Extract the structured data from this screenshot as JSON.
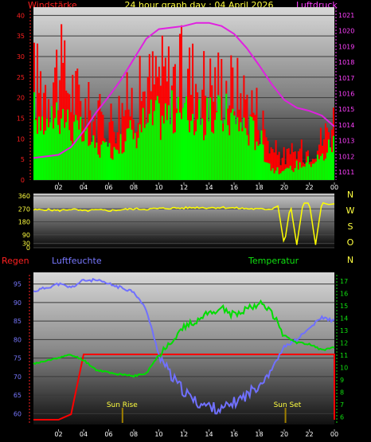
{
  "header": {
    "title": "24 hour graph day : 04 April 2026",
    "left_label": "Windstärke",
    "right_label": "Luftdruck"
  },
  "colors": {
    "wind_max": "#ff0000",
    "wind_avg": "#00ff00",
    "pressure": "#e020e0",
    "direction": "#ffff00",
    "humidity": "#7070ff",
    "temperature": "#00dd00",
    "rain": "#ff0000",
    "sun_marker": "#a08000"
  },
  "x_axis": {
    "labels": [
      "02",
      "04",
      "06",
      "08",
      "10",
      "12",
      "14",
      "16",
      "18",
      "20",
      "22",
      "00"
    ]
  },
  "bottom_panel": {
    "left_label": "Regen",
    "humidity_label": "Luftfeuchte",
    "right_label": "Temperatur",
    "sunrise_label": "Sun Rise",
    "sunset_label": "Sun Set"
  },
  "chart_data": [
    {
      "type": "bar",
      "name": "wind",
      "title": "24 hour graph day : 04 April 2026",
      "ylabel": "Windstärke",
      "y2label": "Luftdruck",
      "ylim": [
        0,
        42
      ],
      "y_ticks": [
        0,
        5,
        10,
        15,
        20,
        25,
        30,
        35,
        40
      ],
      "y2lim": [
        1010.5,
        1021.5
      ],
      "y2_ticks": [
        1011,
        1012,
        1013,
        1014,
        1015,
        1016,
        1017,
        1018,
        1019,
        1020,
        1021
      ],
      "x_hours": [
        0,
        1,
        2,
        3,
        4,
        5,
        6,
        7,
        8,
        9,
        10,
        11,
        12,
        13,
        14,
        15,
        16,
        17,
        18,
        19,
        20,
        21,
        22,
        23,
        24
      ],
      "series": [
        {
          "name": "Windstärke max",
          "values": [
            30,
            28,
            33,
            27,
            22,
            18,
            17,
            21,
            24,
            27,
            31,
            30,
            32,
            30,
            28,
            29,
            27,
            24,
            20,
            9,
            7,
            8,
            9,
            12,
            18
          ]
        },
        {
          "name": "Windstärke",
          "values": [
            18,
            16,
            20,
            14,
            12,
            9,
            8,
            11,
            13,
            16,
            17,
            18,
            19,
            17,
            16,
            18,
            17,
            14,
            12,
            3,
            2,
            4,
            5,
            6,
            11
          ]
        },
        {
          "name": "Luftdruck",
          "values": [
            1011.9,
            1012.0,
            1012.1,
            1012.6,
            1013.6,
            1014.8,
            1015.8,
            1016.9,
            1018.2,
            1019.5,
            1020.1,
            1020.2,
            1020.3,
            1020.5,
            1020.5,
            1020.3,
            1019.8,
            1018.9,
            1017.8,
            1016.6,
            1015.6,
            1015.1,
            1014.9,
            1014.6,
            1013.9
          ]
        }
      ]
    },
    {
      "type": "line",
      "name": "wind-direction",
      "ylim": [
        0,
        360
      ],
      "y_ticks": [
        0,
        30,
        90,
        180,
        270,
        360
      ],
      "right_labels": [
        "N",
        "W",
        "S",
        "O",
        "N"
      ],
      "x_hours": [
        0,
        1,
        2,
        3,
        4,
        5,
        6,
        7,
        8,
        9,
        10,
        11,
        12,
        13,
        14,
        15,
        16,
        17,
        18,
        19,
        19.5,
        20,
        20.5,
        21,
        21.5,
        22,
        22.5,
        23,
        23.5,
        24
      ],
      "values": [
        262,
        265,
        258,
        268,
        255,
        262,
        258,
        264,
        270,
        268,
        272,
        275,
        276,
        280,
        278,
        280,
        276,
        272,
        268,
        270,
        290,
        20,
        300,
        20,
        310,
        310,
        20,
        315,
        300,
        305
      ]
    },
    {
      "type": "line",
      "name": "humidity-temperature-rain",
      "ylabel": "Regen",
      "y2label": "Temperatur",
      "humidity_ylim": [
        57.5,
        97.5
      ],
      "humidity_ticks": [
        60,
        65,
        70,
        75,
        80,
        85,
        90,
        95
      ],
      "temp_ylim": [
        5.5,
        17.5
      ],
      "temp_ticks": [
        6,
        7,
        8,
        9,
        10,
        11,
        12,
        13,
        14,
        15,
        16,
        17
      ],
      "x_hours": [
        0,
        1,
        2,
        3,
        4,
        5,
        6,
        7,
        8,
        9,
        10,
        11,
        12,
        13,
        14,
        15,
        16,
        17,
        18,
        19,
        20,
        21,
        22,
        23,
        24
      ],
      "series": [
        {
          "name": "Luftfeuchte",
          "values": [
            93,
            94,
            95,
            94,
            96,
            96,
            95,
            94,
            93,
            88,
            76,
            70,
            66,
            63,
            62,
            61,
            63,
            65,
            68,
            72,
            78,
            80,
            83,
            86,
            85
          ]
        },
        {
          "name": "Temperatur",
          "values": [
            10.3,
            10.5,
            10.8,
            11.0,
            10.6,
            9.8,
            9.6,
            9.4,
            9.3,
            9.5,
            11.0,
            12.2,
            13.2,
            13.8,
            14.4,
            14.8,
            14.2,
            14.8,
            15.2,
            14.5,
            12.6,
            12.0,
            11.9,
            11.4,
            11.6
          ]
        },
        {
          "name": "Regen",
          "values": [
            0,
            0,
            0,
            0.05,
            0.6,
            0.6,
            0.6,
            0.6,
            0.6,
            0.6,
            0.6,
            0.6,
            0.6,
            0.6,
            0.6,
            0.6,
            0.6,
            0.6,
            0.6,
            0.6,
            0.6,
            0.6,
            0.6,
            0.6,
            0.6
          ]
        }
      ],
      "sunrise_hour": 7.1,
      "sunset_hour": 20.1
    }
  ]
}
